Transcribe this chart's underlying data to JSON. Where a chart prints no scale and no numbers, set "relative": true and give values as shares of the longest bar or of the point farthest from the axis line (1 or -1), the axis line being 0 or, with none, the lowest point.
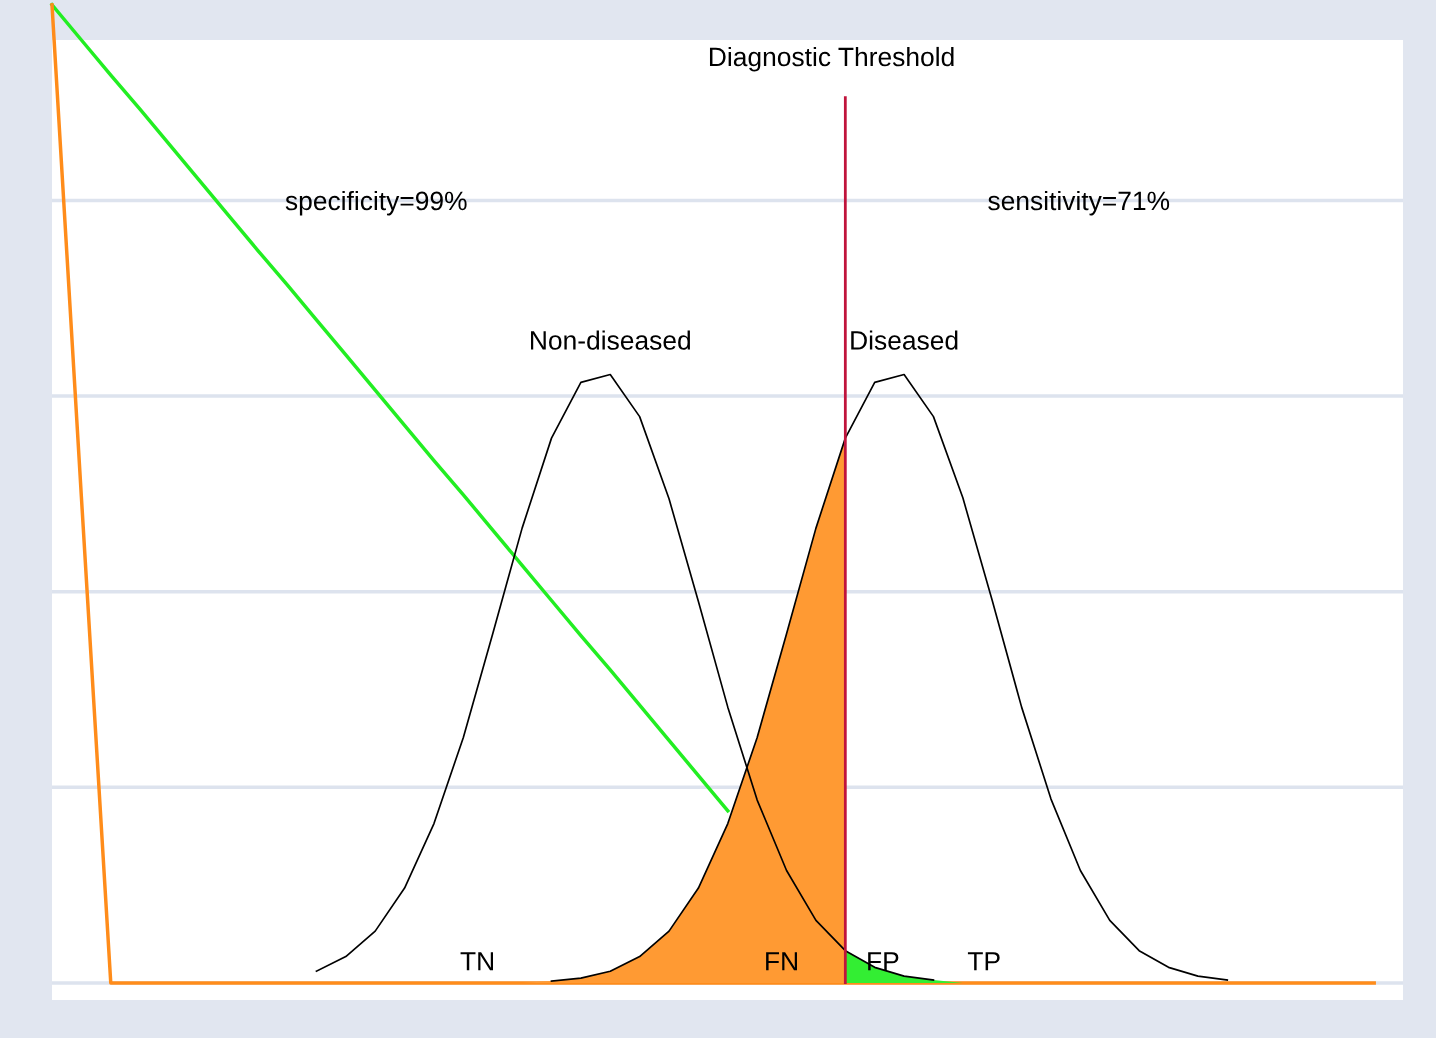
{
  "chart_data": {
    "type": "line",
    "relative": true,
    "grid": "y",
    "categories": [
      null,
      null,
      null,
      null,
      null,
      null,
      null,
      null,
      null,
      null,
      null,
      null,
      null,
      null,
      null,
      null,
      null,
      null,
      null,
      null,
      null,
      null,
      null,
      null,
      null,
      null,
      null,
      null,
      null,
      null,
      null,
      null,
      null,
      null,
      null,
      null,
      null,
      null,
      null,
      null,
      null,
      null,
      null,
      null,
      null,
      null
    ],
    "series": [
      {
        "type": "line",
        "color": "#22ee22",
        "values": [
          1,
          0.964,
          0.928,
          0.893,
          0.857,
          0.821,
          0.785,
          0.749,
          0.714,
          0.678,
          0.642,
          0.606,
          0.57,
          0.534,
          0.499,
          0.463,
          0.427,
          0.391,
          0.355,
          0.32,
          0.284,
          0.248,
          0.212,
          0.176,
          null,
          null,
          null,
          null,
          null,
          null,
          null,
          null,
          null,
          null,
          null,
          null,
          null,
          null,
          null,
          null,
          null,
          null,
          null,
          null,
          null,
          null
        ]
      },
      {
        "type": "line",
        "color": "#ff8c1a",
        "values": [
          1,
          0.497,
          0,
          0,
          0,
          0,
          0,
          0,
          0,
          0,
          0,
          0,
          0,
          0,
          0,
          0,
          0,
          0,
          0,
          0,
          0,
          0,
          0,
          0,
          0,
          0,
          0,
          0,
          0,
          0,
          0,
          0,
          0,
          0,
          0,
          0,
          0,
          0,
          0,
          0,
          0,
          0,
          0,
          0,
          0,
          0
        ]
      },
      {
        "type": "area",
        "color": "#ff9a33",
        "values": [
          null,
          null,
          null,
          null,
          null,
          null,
          null,
          null,
          null,
          null,
          null,
          null,
          null,
          null,
          null,
          null,
          0,
          0.002,
          0.005,
          0.012,
          0.027,
          0.053,
          0.097,
          0.163,
          0.251,
          0.357,
          0.465,
          0.557,
          null,
          null,
          null,
          null,
          null,
          null,
          null,
          null,
          null,
          null,
          null,
          null,
          null,
          null,
          null,
          null,
          null,
          null
        ]
      },
      {
        "type": "area",
        "color": "#33ee33",
        "values": [
          null,
          null,
          null,
          null,
          null,
          null,
          null,
          null,
          null,
          null,
          null,
          null,
          null,
          null,
          null,
          null,
          null,
          null,
          null,
          null,
          null,
          null,
          null,
          null,
          null,
          null,
          null,
          0.033,
          0.016,
          0.007,
          0.003,
          0,
          0,
          0,
          0,
          0,
          0,
          0,
          0,
          0,
          0,
          0,
          0,
          0,
          0,
          0
        ]
      },
      {
        "name": "Non-diseased",
        "color": "#000000",
        "values": [
          null,
          null,
          null,
          null,
          null,
          null,
          null,
          null,
          null,
          0.012,
          0.027,
          0.053,
          0.097,
          0.163,
          0.251,
          0.357,
          0.465,
          0.557,
          0.614,
          0.622,
          0.579,
          0.495,
          0.39,
          0.282,
          0.187,
          0.115,
          0.064,
          0.033,
          0.016,
          0.007,
          0.003,
          null,
          null,
          null,
          null,
          null,
          null,
          null,
          null,
          null,
          null,
          null,
          null,
          null,
          null,
          null
        ]
      },
      {
        "name": "Diseased",
        "color": "#000000",
        "values": [
          null,
          null,
          null,
          null,
          null,
          null,
          null,
          null,
          null,
          null,
          null,
          null,
          null,
          null,
          null,
          null,
          null,
          0.002,
          0.005,
          0.012,
          0.027,
          0.053,
          0.097,
          0.163,
          0.251,
          0.357,
          0.465,
          0.557,
          0.614,
          0.622,
          0.579,
          0.496,
          0.391,
          0.282,
          0.188,
          0.115,
          0.064,
          0.033,
          0.016,
          0.007,
          0.003,
          null,
          null,
          null,
          null,
          null
        ]
      }
    ],
    "annotations": [
      "Diagnostic Threshold",
      "specificity=99%",
      "sensitivity=71%",
      "TN",
      "FN",
      "FP",
      "TP"
    ]
  }
}
